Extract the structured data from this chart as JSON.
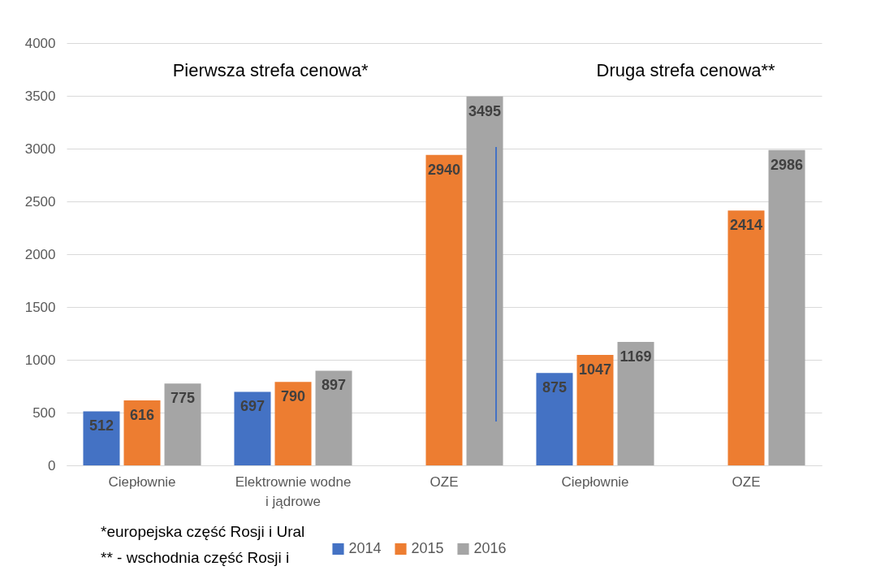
{
  "chart_data": {
    "type": "bar",
    "categories": [
      "Ciepłownie",
      "Elektrownie wodne i jądrowe",
      "OZE",
      "Ciepłownie",
      "OZE"
    ],
    "series": [
      {
        "name": "2014",
        "color": "#4472c4",
        "values": [
          512,
          697,
          null,
          875,
          null
        ]
      },
      {
        "name": "2015",
        "color": "#ed7d31",
        "values": [
          616,
          790,
          2940,
          1047,
          2414
        ]
      },
      {
        "name": "2016",
        "color": "#a5a5a5",
        "values": [
          775,
          897,
          3495,
          1169,
          2986
        ]
      }
    ],
    "ylim": [
      0,
      4000
    ],
    "yticks": [
      0,
      500,
      1000,
      1500,
      2000,
      2500,
      3000,
      3500,
      4000
    ],
    "grid": "y",
    "legend": "bottom",
    "data_labels": true,
    "annotations": [
      "Pierwsza strefa cenowa*",
      "Druga strefa cenowa**",
      "*europejska część Rosji i Ural",
      "** - wschodnia część Rosji i"
    ]
  }
}
